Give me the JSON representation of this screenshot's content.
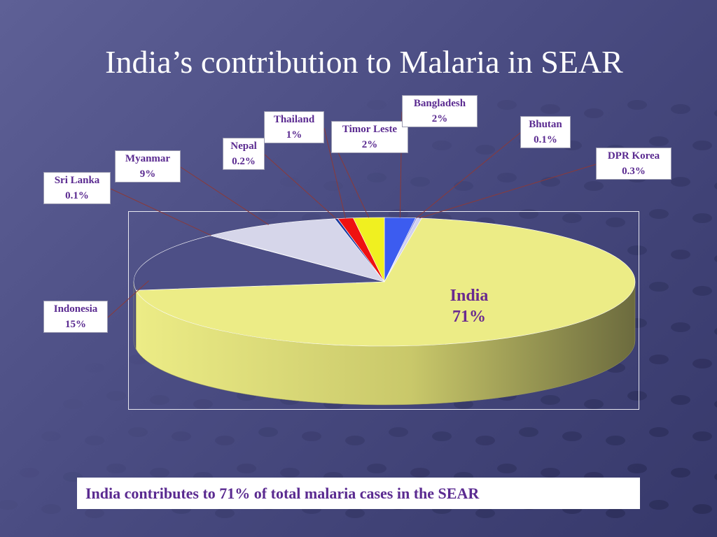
{
  "slide": {
    "title": "India’s contribution to Malaria in SEAR",
    "footer": "India contributes to 71% of total malaria cases in the SEAR"
  },
  "chart_data": {
    "type": "pie",
    "three_d": true,
    "title": "",
    "series": [
      {
        "name": "",
        "labels": [
          "India",
          "Indonesia",
          "Sri Lanka",
          "Myanmar",
          "Nepal",
          "Thailand",
          "Timor Leste",
          "Bangladesh",
          "Bhutan",
          "DPR Korea"
        ],
        "values": [
          71,
          15,
          0.1,
          9,
          0.2,
          1,
          2,
          2,
          0.1,
          0.3
        ],
        "value_labels": [
          "71%",
          "15%",
          "0.1%",
          "9%",
          "0.2%",
          "1%",
          "2%",
          "2%",
          "0.1%",
          "0.3%"
        ]
      }
    ],
    "colors": [
      "#ecec86",
      "#4d4f86",
      "#1a1a7a",
      "#d6d6ea",
      "#1a3aa0",
      "#ee1111",
      "#f0f020",
      "#3c5cf0",
      "#8888dd",
      "#d0d0f0"
    ],
    "grid": false,
    "legend": "none"
  }
}
